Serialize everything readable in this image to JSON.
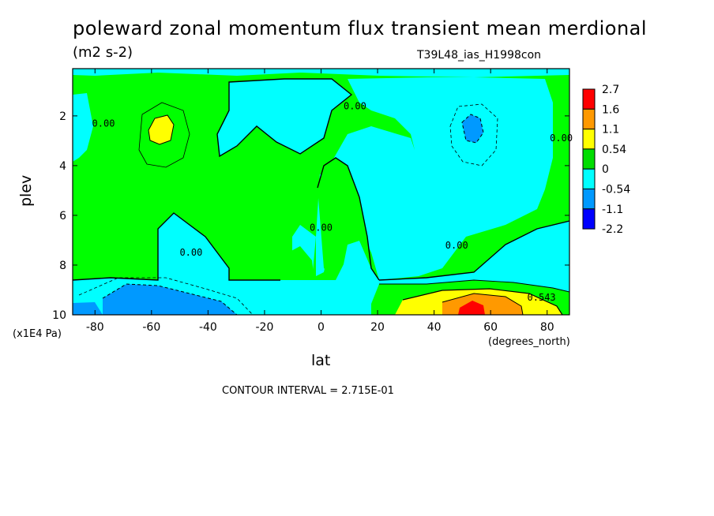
{
  "chart_data": {
    "type": "heatmap",
    "title": "poleward zonal momentum flux transient mean merdional",
    "units": "(m2 s-2)",
    "run_label": "T39L48_ias_H1998con",
    "xlabel": "lat",
    "xunits": "(degrees_north)",
    "ylabel": "plev",
    "yunits": "(x1E4 Pa)",
    "contour_interval_text": "CONTOUR INTERVAL = 2.715E-01",
    "x_ticks": [
      "-80",
      "-60",
      "-40",
      "-20",
      "0",
      "20",
      "40",
      "60",
      "80"
    ],
    "x_tick_values": [
      -80,
      -60,
      -40,
      -20,
      0,
      20,
      40,
      60,
      80
    ],
    "y_ticks": [
      "2",
      "4",
      "6",
      "8",
      "10"
    ],
    "y_tick_values": [
      2,
      4,
      6,
      8,
      10
    ],
    "xlim": [
      -87.9,
      87.9
    ],
    "ylim": [
      0.1,
      10
    ],
    "y_inverted": true,
    "colorbar": {
      "labels": [
        "2.7",
        "1.6",
        "1.1",
        "0.54",
        "0",
        "-0.54",
        "-1.1",
        "-2.2"
      ],
      "label_values": [
        2.7,
        1.6,
        1.1,
        0.54,
        0,
        -0.54,
        -1.1,
        -2.2
      ],
      "colors": [
        "#ff0000",
        "#ff9900",
        "#ffff00",
        "#00dd00",
        "#00ffff",
        "#0099ff",
        "#0000ff"
      ]
    },
    "contour_labels": [
      {
        "text": "0.00",
        "lat": -77,
        "plev": 2.3
      },
      {
        "text": "0.00",
        "lat": 12,
        "plev": 1.6
      },
      {
        "text": "0.00",
        "lat": 85,
        "plev": 2.9
      },
      {
        "text": "0.00",
        "lat": -46,
        "plev": 7.5
      },
      {
        "text": "0.00",
        "lat": 0,
        "plev": 6.5
      },
      {
        "text": "0.00",
        "lat": 48,
        "plev": 7.2
      },
      {
        "text": "0.543",
        "lat": 78,
        "plev": 9.3
      }
    ],
    "features": [
      {
        "region": "positive maximum",
        "lat": -55,
        "plev": 2.5,
        "value_range": "0.54 to 1.1"
      },
      {
        "region": "negative minimum",
        "lat": 52,
        "plev": 2.5,
        "value_range": "-1.1 to -0.54"
      },
      {
        "region": "negative minimum",
        "lat": -57,
        "plev": 9.6,
        "value_range": "-1.1 to -0.54"
      },
      {
        "region": "positive maximum",
        "lat": 52,
        "plev": 9.8,
        "value_range": "1.6 to 2.7"
      }
    ]
  }
}
